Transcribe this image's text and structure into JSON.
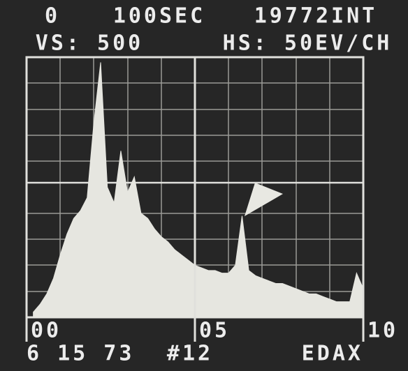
{
  "header": {
    "line1": [
      "0",
      "100SEC",
      "19772INT"
    ],
    "line2": [
      "VS: 500",
      "HS: 50EV/CH"
    ]
  },
  "chart_data": {
    "type": "area",
    "x": [
      0.2,
      0.4,
      0.6,
      0.8,
      1.0,
      1.2,
      1.4,
      1.6,
      1.8,
      2.0,
      2.2,
      2.4,
      2.6,
      2.8,
      3.0,
      3.2,
      3.4,
      3.6,
      3.8,
      4.0,
      4.2,
      4.4,
      4.6,
      4.8,
      5.0,
      5.2,
      5.4,
      5.6,
      5.8,
      6.0,
      6.2,
      6.4,
      6.6,
      6.8,
      7.0,
      7.2,
      7.4,
      7.6,
      7.8,
      8.0,
      8.2,
      8.4,
      8.6,
      8.8,
      9.0,
      9.2,
      9.4,
      9.6,
      9.8,
      10.0
    ],
    "values": [
      0.2,
      0.5,
      0.9,
      1.5,
      2.4,
      3.2,
      3.8,
      4.1,
      4.6,
      7.5,
      9.8,
      5.0,
      4.4,
      6.4,
      4.8,
      5.4,
      4.0,
      3.8,
      3.4,
      3.1,
      2.9,
      2.6,
      2.4,
      2.2,
      2.0,
      1.9,
      1.8,
      1.8,
      1.7,
      1.7,
      2.0,
      3.9,
      1.8,
      1.6,
      1.5,
      1.4,
      1.3,
      1.3,
      1.2,
      1.1,
      1.0,
      0.9,
      0.9,
      0.8,
      0.7,
      0.6,
      0.6,
      0.6,
      1.7,
      1.1
    ],
    "color": "#e6e6e0",
    "xlim": [
      0,
      10
    ],
    "ylim": [
      0,
      10
    ],
    "xticks": [
      {
        "value": 0,
        "label": "00"
      },
      {
        "value": 5,
        "label": "05"
      },
      {
        "value": 10,
        "label": "10"
      }
    ]
  },
  "footer": [
    "6 15 73",
    "#12",
    "EDAX"
  ]
}
